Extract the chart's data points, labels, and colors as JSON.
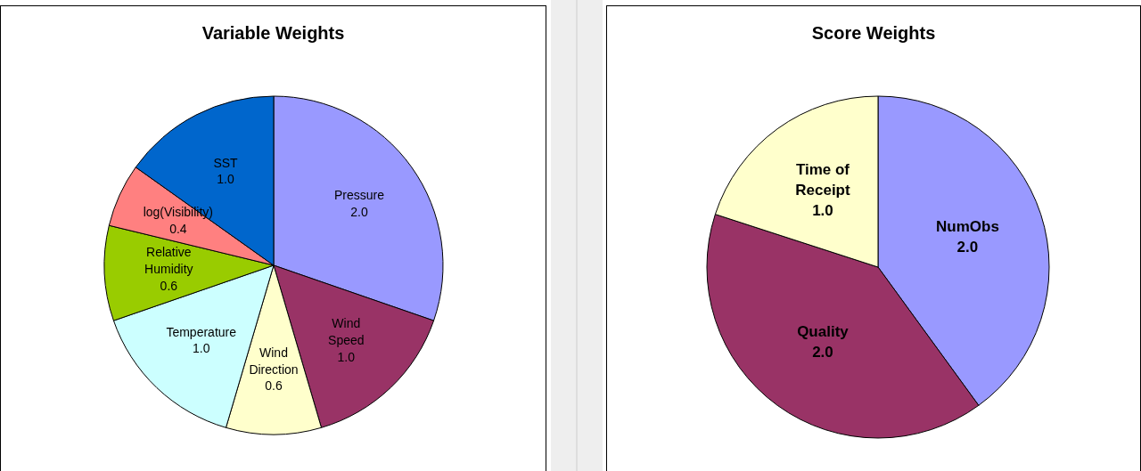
{
  "chart_data": [
    {
      "type": "pie",
      "title": "Variable Weights",
      "categories": [
        "Pressure",
        "Wind Speed",
        "Wind Direction",
        "Temperature",
        "Relative Humidity",
        "log(Visibility)",
        "SST"
      ],
      "values": [
        2.0,
        1.0,
        0.6,
        1.0,
        0.6,
        0.4,
        1.0
      ],
      "value_labels": [
        "2.0",
        "1.0",
        "0.6",
        "1.0",
        "0.6",
        "0.4",
        "1.0"
      ],
      "colors": [
        "#9999ff",
        "#993366",
        "#ffffcc",
        "#ccffff",
        "#99cc00",
        "#ff8080",
        "#0066cc"
      ]
    },
    {
      "type": "pie",
      "title": "Score Weights",
      "categories": [
        "NumObs",
        "Quality",
        "Time of Receipt"
      ],
      "values": [
        2.0,
        2.0,
        1.0
      ],
      "value_labels": [
        "2.0",
        "2.0",
        "1.0"
      ],
      "colors": [
        "#9999ff",
        "#993366",
        "#ffffcc"
      ]
    }
  ]
}
